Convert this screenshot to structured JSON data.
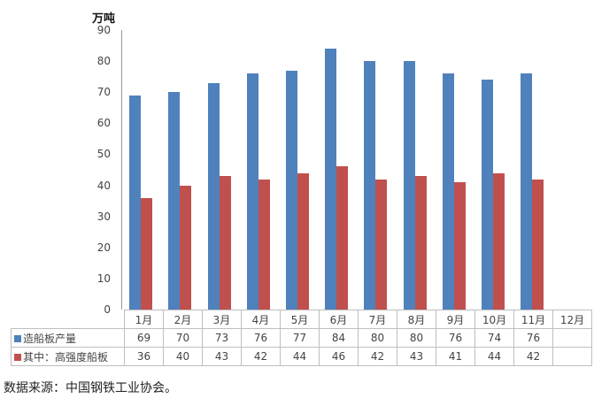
{
  "chart_data": {
    "type": "bar",
    "title": "",
    "xlabel": "",
    "ylabel": "万吨",
    "ylim": [
      0,
      90
    ],
    "yticks": [
      0,
      10,
      20,
      30,
      40,
      50,
      60,
      70,
      80,
      90
    ],
    "grid": false,
    "legend_position": "data-table",
    "categories": [
      "1月",
      "2月",
      "3月",
      "4月",
      "5月",
      "6月",
      "7月",
      "8月",
      "9月",
      "10月",
      "11月",
      "12月"
    ],
    "series": [
      {
        "name": "造船板产量",
        "color": "#4f81bd",
        "values": [
          69,
          70,
          73,
          76,
          77,
          84,
          80,
          80,
          76,
          74,
          76,
          null
        ]
      },
      {
        "name": "其中：高强度船板",
        "color": "#c0504d",
        "values": [
          36,
          40,
          43,
          42,
          44,
          46,
          42,
          43,
          41,
          44,
          42,
          null
        ]
      }
    ]
  },
  "unit_label": "万吨",
  "source_note": "数据来源：中国钢铁工业协会。"
}
